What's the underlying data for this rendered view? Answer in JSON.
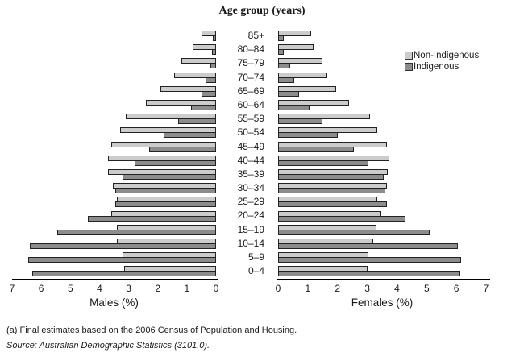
{
  "chart_data": {
    "type": "bar",
    "subtype": "population_pyramid",
    "title": "Age group (years)",
    "xlabel_left": "Males (%)",
    "xlabel_right": "Females (%)",
    "xlim": [
      0,
      7
    ],
    "grid": false,
    "legend_position": "upper-right",
    "ticks_left": [
      "7",
      "6",
      "5",
      "4",
      "3",
      "2",
      "1",
      "0"
    ],
    "ticks_right": [
      "0",
      "1",
      "2",
      "3",
      "4",
      "5",
      "6",
      "7"
    ],
    "categories": [
      "85+",
      "80–84",
      "75–79",
      "70–74",
      "65–69",
      "60–64",
      "55–59",
      "50–54",
      "45–49",
      "40–44",
      "35–39",
      "30–34",
      "25–29",
      "20–24",
      "15–19",
      "10–14",
      "5–9",
      "0–4"
    ],
    "series": [
      {
        "name": "Non-Indigenous",
        "side": "males",
        "color": "#cccccc",
        "values": [
          0.5,
          0.8,
          1.2,
          1.45,
          1.9,
          2.4,
          3.1,
          3.3,
          3.6,
          3.7,
          3.7,
          3.55,
          3.4,
          3.6,
          3.4,
          3.4,
          3.2,
          3.15
        ]
      },
      {
        "name": "Indigenous",
        "side": "males",
        "color": "#8c8c8c",
        "values": [
          0.1,
          0.15,
          0.2,
          0.35,
          0.5,
          0.85,
          1.3,
          1.8,
          2.3,
          2.8,
          3.2,
          3.45,
          3.45,
          4.4,
          5.45,
          6.4,
          6.45,
          6.3
        ]
      },
      {
        "name": "Non-Indigenous",
        "side": "females",
        "color": "#cccccc",
        "values": [
          1.1,
          1.2,
          1.5,
          1.65,
          1.95,
          2.4,
          3.1,
          3.35,
          3.65,
          3.75,
          3.7,
          3.65,
          3.35,
          3.45,
          3.3,
          3.2,
          3.05,
          3.0
        ]
      },
      {
        "name": "Indigenous",
        "side": "females",
        "color": "#8c8c8c",
        "values": [
          0.2,
          0.2,
          0.4,
          0.55,
          0.7,
          1.05,
          1.5,
          2.0,
          2.55,
          3.05,
          3.55,
          3.6,
          3.65,
          4.3,
          5.1,
          6.05,
          6.15,
          6.1
        ]
      }
    ]
  },
  "legend": {
    "items": [
      {
        "label": "Non-Indigenous",
        "color": "#cccccc"
      },
      {
        "label": "Indigenous",
        "color": "#8c8c8c"
      }
    ]
  },
  "footnotes": {
    "note_a": "(a) Final estimates based on the 2006 Census of Population and Housing.",
    "source": "Source: Australian Demographic Statistics (3101.0)."
  }
}
